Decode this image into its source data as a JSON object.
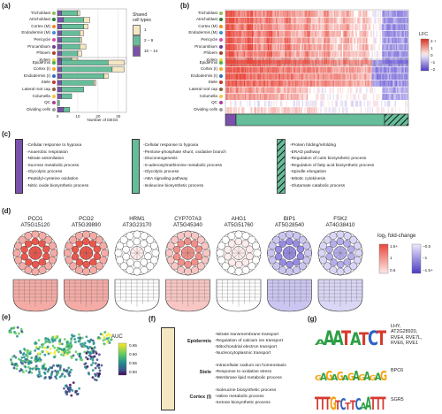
{
  "panels": [
    "(a)",
    "(b)",
    "(c)",
    "(d)",
    "(e)",
    "(f)",
    "(g)"
  ],
  "colors": {
    "green": "#66bd9a",
    "purple": "#7b52ab",
    "cream": "#f5e7c2",
    "red": "#e8463a",
    "blue": "#6b5bd6"
  },
  "cell_types_top": [
    {
      "name": "Trichoblast",
      "dot": "#8fbf5a"
    },
    {
      "name": "Atrichoblast",
      "dot": "#2e7d32"
    },
    {
      "name": "Cortex (M)",
      "dot": "#f08a24"
    },
    {
      "name": "Endodermis (M)",
      "dot": "#3f8fd6"
    },
    {
      "name": "Pericycle",
      "dot": "#d24fa8"
    },
    {
      "name": "Procambium",
      "dot": "#6a3d9a"
    },
    {
      "name": "Phloem",
      "dot": "#a5432b"
    },
    {
      "name": "Xylem",
      "dot": "#e9d43b"
    }
  ],
  "cell_types_bottom": [
    {
      "name": "Epidermis",
      "dot": "#4caf50"
    },
    {
      "name": "Cortex (I)",
      "dot": "#f5a623"
    },
    {
      "name": "Endodermis (I)",
      "dot": "#2f6fc0"
    },
    {
      "name": "Stele",
      "dot": "#c0392b"
    },
    {
      "name": "Lateral root cap",
      "dot": "#8b5e3c"
    },
    {
      "name": "Columella",
      "dot": "#f2c744"
    },
    {
      "name": "QC",
      "dot": "#b23c8f"
    },
    {
      "name": "Dividing cells",
      "dot": "#9e9e9e"
    }
  ],
  "panel_a": {
    "xlabel": "Number of DEGs",
    "xticks": [
      "0",
      "10",
      "20",
      "30"
    ],
    "legend_title": "Shared\ncell types",
    "legend": [
      "1",
      "2 – 9",
      "10 – 14"
    ]
  },
  "chart_data": {
    "type": "bar",
    "title": "",
    "xlabel": "Number of DEGs",
    "xlim": [
      0,
      34
    ],
    "stacked": true,
    "categories_top": [
      "Trichoblast",
      "Atrichoblast",
      "Cortex (M)",
      "Endodermis (M)",
      "Pericycle",
      "Procambium",
      "Phloem",
      "Xylem"
    ],
    "series_top": [
      {
        "name": "10 – 14",
        "values": [
          2,
          3,
          2,
          2,
          2,
          2,
          2,
          2
        ]
      },
      {
        "name": "2 – 9",
        "values": [
          8,
          10,
          11,
          9,
          9,
          9,
          8,
          5
        ]
      },
      {
        "name": "1",
        "values": [
          1,
          3,
          2,
          2,
          1,
          3,
          2,
          3
        ]
      }
    ],
    "categories_bottom": [
      "Epidermis",
      "Cortex (I)",
      "Endodermis (I)",
      "Stele",
      "Lateral root cap",
      "Columella",
      "QC",
      "Dividing cells"
    ],
    "series_bottom": [
      {
        "name": "10 – 14",
        "values": [
          2,
          2,
          2,
          2,
          2,
          2,
          0,
          3
        ]
      },
      {
        "name": "2 – 9",
        "values": [
          23,
          25,
          21,
          16,
          11,
          5,
          1,
          3
        ]
      },
      {
        "name": "1",
        "values": [
          8,
          6,
          2,
          1,
          0,
          0,
          0,
          0
        ]
      }
    ]
  },
  "panel_b": {
    "legend_title": "LFC",
    "ticks": [
      "2 +",
      "1",
      "0",
      "−1",
      "−2"
    ]
  },
  "panel_c": {
    "purple_terms": [
      "-Cellular response to hypoxia",
      "-Anaerobic respiration",
      "-Nitrate assimilation",
      "-Sucrose metabolic process",
      "-Glycolytic process",
      "-Peptidyl-cysteine oxidation",
      "-Nitric oxide biosynthetic process"
    ],
    "green_terms": [
      "-Cellular response to hypoxia",
      "-Pentose-phosphate shunt, oxidative branch",
      "-Gluconeogenesis",
      "-S-adenosylmethionine metabolic process",
      "-Glycolytic process",
      "-ABA signaling pathway",
      "-Isoleucine biosynthetic process"
    ],
    "hatched_terms": [
      "-Protein folding/refolding",
      "-ERAD pathway",
      "-Regulation of cutin biosynthetic process",
      "-Regulation of fatty acid biosynthetic process",
      "-Spindle elongation",
      "-Mitotic cytokinesis",
      "-Glutamate catabolic process"
    ]
  },
  "panel_d": {
    "genes": [
      {
        "name": "PCO1",
        "id": "AT5G15120"
      },
      {
        "name": "PCO2",
        "id": "AT5G39890"
      },
      {
        "name": "HRM1",
        "id": "AT3G23170"
      },
      {
        "name": "CYP707A3",
        "id": "AT5G45340"
      },
      {
        "name": "AHG1",
        "id": "AT5G51760"
      },
      {
        "name": "BIP1",
        "id": "AT5G28540"
      },
      {
        "name": "FSK2",
        "id": "AT4G38410"
      }
    ],
    "legend_title": "log₂ fold-change",
    "red_ticks": [
      "1.5+",
      "1",
      "0.5"
    ],
    "blue_ticks": [
      "−0.5",
      "−1",
      "−1.5+"
    ]
  },
  "panel_e": {
    "legend_title": "AUC",
    "ticks": [
      "0.65",
      "0.60",
      "0.55",
      "0.50"
    ]
  },
  "panel_f": {
    "groups": [
      {
        "tissue": "Epidermis",
        "terms": [
          "-Nitrate transmembrane transport",
          "-Regulation of calcium ion transport",
          "-Mitochondrial electron transport",
          "-Nucleocytoplasmic transport"
        ]
      },
      {
        "tissue": "Stele",
        "terms": [
          "-Intracellular sodium ion homeostasis",
          "-Response to oxidative stress",
          "-Membrane lipid metabolic process"
        ]
      },
      {
        "tissue": "Cortex (I)",
        "terms": [
          "-Isoleucine biosynthetic process",
          "-Valine metabolic process",
          "-Ketone biosynthetic process"
        ]
      }
    ]
  },
  "panel_g": {
    "motifs": [
      {
        "label": "LHY,\nAT2G28920,\nRVE4, RVE7L,\nRVE6, RVE1",
        "letters": "AAATATCT"
      },
      {
        "label": "BPC6",
        "letters": "GAGAGAGAGAGAG"
      },
      {
        "label": "SGR5",
        "letters": "TTTGTCTTCAATTT"
      }
    ]
  }
}
